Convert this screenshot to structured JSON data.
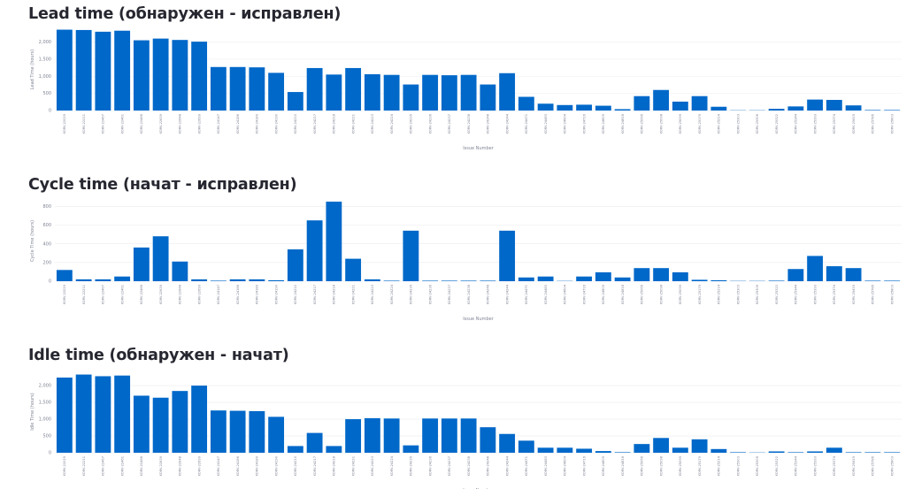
{
  "chart_data": [
    {
      "type": "bar",
      "title": "Lead time (обнаружен - исправлен)",
      "xlabel": "Issue Number",
      "ylabel": "Lead Time (hours)",
      "ylim": [
        0,
        2400
      ],
      "yticks": [
        0,
        500,
        1000,
        1500,
        2000
      ],
      "ytick_labels": [
        "0",
        "500",
        "1,000",
        "1,500",
        "2,000"
      ],
      "grid": true,
      "bar_color": "#0068c9",
      "categories": [
        "KORV-22029",
        "KORV-22211",
        "KORV-22467",
        "KORV-22461",
        "KORV-22466",
        "KORV-22639",
        "KORV-22648",
        "KORV-22699",
        "KORV-24147",
        "KORV-24186",
        "KORV-24189",
        "KORV-24190",
        "KORV-24210",
        "KORV-24217",
        "KORV-24218",
        "KORV-24221",
        "KORV-24223",
        "KORV-24224",
        "KORV-24235",
        "KORV-24236",
        "KORV-24237",
        "KORV-24238",
        "KORV-24248",
        "KORV-24244",
        "KORV-24471",
        "KORV-24483",
        "KORV-24604",
        "KORV-24716",
        "KORV-24809",
        "KORV-24818",
        "KORV-25066",
        "KORV-25098",
        "KORV-25099",
        "KORV-25179",
        "KORV-25214",
        "KORV-25303",
        "KORV-25306",
        "KORV-25322",
        "KORV-25344",
        "KORV-25393",
        "KORV-25374",
        "KORV-25415",
        "KORV-25786",
        "KORV-25803"
      ],
      "values": [
        2360,
        2350,
        2300,
        2330,
        2050,
        2100,
        2060,
        2010,
        1270,
        1270,
        1260,
        1100,
        540,
        1240,
        1050,
        1240,
        1060,
        1040,
        760,
        1040,
        1030,
        1040,
        760,
        1090,
        400,
        200,
        160,
        170,
        140,
        40,
        420,
        600,
        260,
        420,
        110,
        0,
        0,
        50,
        120,
        320,
        310,
        150,
        5,
        5
      ]
    },
    {
      "type": "bar",
      "title": "Cycle time (начат - исправлен)",
      "xlabel": "Issue Number",
      "ylabel": "Cycle Time (hours)",
      "ylim": [
        0,
        860
      ],
      "yticks": [
        0,
        200,
        400,
        600,
        800
      ],
      "ytick_labels": [
        "0",
        "200",
        "400",
        "600",
        "800"
      ],
      "grid": true,
      "bar_color": "#0068c9",
      "categories": [
        "KORV-22029",
        "KORV-22211",
        "KORV-22467",
        "KORV-22461",
        "KORV-22466",
        "KORV-22639",
        "KORV-22648",
        "KORV-22699",
        "KORV-24147",
        "KORV-24186",
        "KORV-24189",
        "KORV-24190",
        "KORV-24210",
        "KORV-24217",
        "KORV-24218",
        "KORV-24221",
        "KORV-24223",
        "KORV-24224",
        "KORV-24235",
        "KORV-24236",
        "KORV-24237",
        "KORV-24238",
        "KORV-24248",
        "KORV-24244",
        "KORV-24471",
        "KORV-24483",
        "KORV-24604",
        "KORV-24716",
        "KORV-24809",
        "KORV-24818",
        "KORV-25066",
        "KORV-25098",
        "KORV-25099",
        "KORV-25179",
        "KORV-25214",
        "KORV-25303",
        "KORV-25306",
        "KORV-25322",
        "KORV-25344",
        "KORV-25393",
        "KORV-25374",
        "KORV-25415",
        "KORV-25786",
        "KORV-25803"
      ],
      "values": [
        120,
        20,
        20,
        50,
        360,
        480,
        210,
        20,
        5,
        20,
        20,
        10,
        340,
        650,
        850,
        240,
        20,
        5,
        540,
        5,
        5,
        5,
        5,
        540,
        40,
        50,
        0,
        50,
        95,
        40,
        140,
        140,
        95,
        15,
        10,
        0,
        0,
        5,
        130,
        270,
        160,
        140,
        5,
        5
      ]
    },
    {
      "type": "bar",
      "title": "Idle time (обнаружен - начат)",
      "xlabel": "Issue Number",
      "ylabel": "Idle Time (hours)",
      "ylim": [
        0,
        2450
      ],
      "yticks": [
        0,
        500,
        1000,
        1500,
        2000
      ],
      "ytick_labels": [
        "0",
        "500",
        "1,000",
        "1,500",
        "2,000"
      ],
      "grid": true,
      "bar_color": "#0068c9",
      "categories": [
        "KORV-22029",
        "KORV-22211",
        "KORV-22467",
        "KORV-22461",
        "KORV-22466",
        "KORV-22639",
        "KORV-22648",
        "KORV-22699",
        "KORV-24147",
        "KORV-24186",
        "KORV-24189",
        "KORV-24190",
        "KORV-24210",
        "KORV-24217",
        "KORV-24218",
        "KORV-24221",
        "KORV-24223",
        "KORV-24224",
        "KORV-24235",
        "KORV-24236",
        "KORV-24237",
        "KORV-24238",
        "KORV-24248",
        "KORV-24244",
        "KORV-24471",
        "KORV-24483",
        "KORV-24604",
        "KORV-24716",
        "KORV-24809",
        "KORV-24818",
        "KORV-25066",
        "KORV-25098",
        "KORV-25099",
        "KORV-25179",
        "KORV-25214",
        "KORV-25303",
        "KORV-25306",
        "KORV-25322",
        "KORV-25344",
        "KORV-25393",
        "KORV-25374",
        "KORV-25415",
        "KORV-25786",
        "KORV-25803"
      ],
      "values": [
        2240,
        2330,
        2280,
        2300,
        1700,
        1640,
        1840,
        2000,
        1260,
        1250,
        1240,
        1070,
        200,
        590,
        200,
        1000,
        1030,
        1020,
        220,
        1020,
        1020,
        1020,
        760,
        560,
        360,
        150,
        150,
        120,
        50,
        10,
        260,
        440,
        150,
        400,
        110,
        5,
        0,
        40,
        10,
        40,
        150,
        15,
        5,
        5
      ]
    }
  ]
}
